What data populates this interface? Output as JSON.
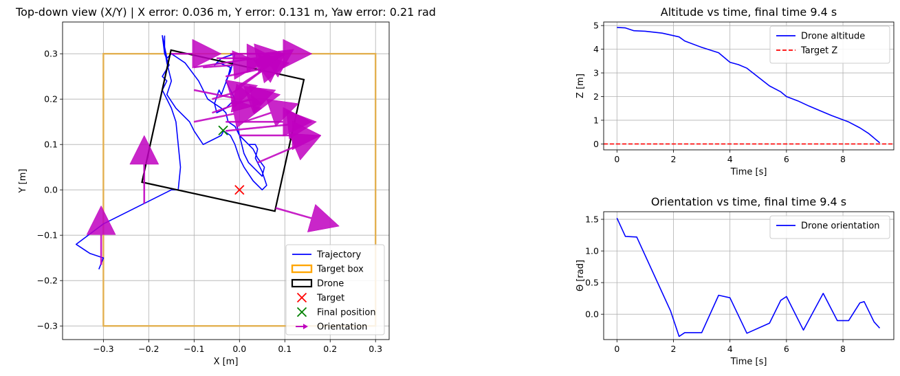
{
  "chart_data": [
    {
      "type": "scatter",
      "title": "Top-down view (X/Y) | X error: 0.036 m, Y error: 0.131 m, Yaw error: 0.21 rad",
      "xlabel": "X [m]",
      "ylabel": "Y [m]",
      "xlim": [
        -0.39,
        0.33
      ],
      "ylim": [
        -0.33,
        0.37
      ],
      "xticks": [
        -0.3,
        -0.2,
        -0.1,
        0.0,
        0.1,
        0.2,
        0.3
      ],
      "yticks": [
        -0.3,
        -0.2,
        -0.1,
        0.0,
        0.1,
        0.2,
        0.3
      ],
      "xtick_labels": [
        "−0.3",
        "−0.2",
        "−0.1",
        "0.0",
        "0.1",
        "0.2",
        "0.3"
      ],
      "ytick_labels": [
        "−0.3",
        "−0.2",
        "−0.1",
        "0.0",
        "0.1",
        "0.2",
        "0.3"
      ],
      "grid": true,
      "legend_position": "bottom-right",
      "legend": [
        "Trajectory",
        "Target box",
        "Drone",
        "Target",
        "Final position",
        "Orientation"
      ],
      "colors": {
        "trajectory": "#0000ff",
        "target_box": "#e3b050",
        "target_box_legend": "#ffa500",
        "drone": "#000000",
        "target": "#ff0000",
        "final": "#008000",
        "orientation": "#bf00bf"
      },
      "target_box": [
        [
          -0.3,
          -0.3
        ],
        [
          0.3,
          -0.3
        ],
        [
          0.3,
          0.3
        ],
        [
          -0.3,
          0.3
        ]
      ],
      "drone": [
        [
          -0.215,
          0.017
        ],
        [
          0.078,
          -0.047
        ],
        [
          0.142,
          0.243
        ],
        [
          -0.151,
          0.308
        ]
      ],
      "target": [
        0.0,
        0.0
      ],
      "final_position": [
        -0.036,
        0.131
      ],
      "trajectory": [
        [
          -0.31,
          -0.175
        ],
        [
          -0.3,
          -0.15
        ],
        [
          -0.33,
          -0.14
        ],
        [
          -0.36,
          -0.12
        ],
        [
          -0.3,
          -0.075
        ],
        [
          -0.15,
          0.0
        ],
        [
          -0.135,
          0.0
        ],
        [
          -0.13,
          0.05
        ],
        [
          -0.14,
          0.15
        ],
        [
          -0.15,
          0.18
        ],
        [
          -0.17,
          0.22
        ],
        [
          -0.16,
          0.24
        ],
        [
          -0.17,
          0.25
        ],
        [
          -0.155,
          0.275
        ],
        [
          -0.165,
          0.3
        ],
        [
          -0.17,
          0.34
        ],
        [
          -0.16,
          0.29
        ],
        [
          -0.15,
          0.3
        ],
        [
          -0.12,
          0.28
        ],
        [
          -0.09,
          0.24
        ],
        [
          -0.07,
          0.2
        ],
        [
          -0.055,
          0.19
        ],
        [
          -0.045,
          0.22
        ],
        [
          -0.04,
          0.21
        ],
        [
          -0.025,
          0.25
        ],
        [
          -0.02,
          0.27
        ],
        [
          -0.045,
          0.28
        ],
        [
          -0.055,
          0.275
        ],
        [
          -0.04,
          0.29
        ],
        [
          -0.01,
          0.3
        ],
        [
          -0.02,
          0.26
        ],
        [
          -0.03,
          0.24
        ],
        [
          -0.02,
          0.22
        ],
        [
          -0.01,
          0.2
        ],
        [
          -0.03,
          0.18
        ],
        [
          -0.05,
          0.17
        ],
        [
          -0.055,
          0.19
        ],
        [
          -0.04,
          0.18
        ],
        [
          -0.03,
          0.17
        ],
        [
          -0.025,
          0.15
        ],
        [
          -0.01,
          0.14
        ],
        [
          0.0,
          0.12
        ],
        [
          0.01,
          0.08
        ],
        [
          0.02,
          0.06
        ],
        [
          0.04,
          0.04
        ],
        [
          0.05,
          0.03
        ],
        [
          0.055,
          0.05
        ],
        [
          0.04,
          0.07
        ],
        [
          0.03,
          0.09
        ],
        [
          0.0,
          0.12
        ],
        [
          -0.005,
          0.14
        ],
        [
          0.0,
          0.12
        ],
        [
          0.02,
          0.1
        ],
        [
          0.035,
          0.1
        ],
        [
          0.04,
          0.09
        ],
        [
          0.035,
          0.07
        ],
        [
          0.05,
          0.04
        ],
        [
          0.06,
          0.01
        ],
        [
          0.05,
          0.0
        ],
        [
          0.03,
          0.02
        ],
        [
          0.01,
          0.05
        ],
        [
          0.0,
          0.07
        ],
        [
          -0.01,
          0.1
        ],
        [
          -0.02,
          0.12
        ],
        [
          -0.035,
          0.13
        ],
        [
          -0.04,
          0.12
        ],
        [
          -0.06,
          0.11
        ],
        [
          -0.08,
          0.1
        ],
        [
          -0.1,
          0.13
        ],
        [
          -0.11,
          0.15
        ],
        [
          -0.14,
          0.18
        ],
        [
          -0.16,
          0.21
        ],
        [
          -0.15,
          0.24
        ],
        [
          -0.16,
          0.28
        ],
        [
          -0.165,
          0.31
        ],
        [
          -0.165,
          0.34
        ]
      ],
      "orientation_arrows": [
        [
          -0.305,
          -0.165,
          0.0,
          0.13
        ],
        [
          -0.21,
          -0.03,
          0.0,
          0.15
        ],
        [
          -0.03,
          0.13,
          0.2,
          0.02
        ],
        [
          -0.03,
          0.15,
          0.19,
          0.0
        ],
        [
          -0.1,
          0.15,
          0.15,
          0.03
        ],
        [
          -0.06,
          0.17,
          0.14,
          0.05
        ],
        [
          -0.02,
          0.19,
          0.11,
          0.02
        ],
        [
          -0.06,
          0.2,
          0.1,
          0.03
        ],
        [
          -0.1,
          0.22,
          0.15,
          -0.03
        ],
        [
          -0.02,
          0.21,
          0.12,
          0.09
        ],
        [
          0.0,
          0.23,
          0.12,
          0.08
        ],
        [
          -0.03,
          0.25,
          0.14,
          0.03
        ],
        [
          -0.08,
          0.27,
          0.13,
          0.01
        ],
        [
          -0.15,
          0.3,
          0.11,
          0.0
        ],
        [
          -0.05,
          0.29,
          0.13,
          0.0
        ],
        [
          -0.02,
          0.3,
          0.18,
          0.0
        ],
        [
          -0.1,
          0.27,
          0.2,
          0.03
        ],
        [
          0.01,
          0.15,
          0.12,
          0.04
        ],
        [
          0.0,
          0.12,
          0.18,
          0.0
        ],
        [
          0.04,
          0.06,
          0.14,
          0.06
        ],
        [
          0.08,
          -0.04,
          0.14,
          -0.04
        ]
      ]
    },
    {
      "type": "line",
      "title": "Altitude vs time, final time 9.4 s",
      "xlabel": "Time [s]",
      "ylabel": "Z [m]",
      "xlim": [
        -0.47,
        9.8
      ],
      "ylim": [
        -0.25,
        5.15
      ],
      "xticks": [
        0,
        2,
        4,
        6,
        8
      ],
      "yticks": [
        0,
        1,
        2,
        3,
        4,
        5
      ],
      "xtick_labels": [
        "0",
        "2",
        "4",
        "6",
        "8"
      ],
      "ytick_labels": [
        "0",
        "1",
        "2",
        "3",
        "4",
        "5"
      ],
      "grid": true,
      "legend_position": "top-right",
      "series": [
        {
          "name": "Drone altitude",
          "color": "#0000ff",
          "style": "solid",
          "x": [
            0.0,
            0.3,
            0.6,
            1.0,
            1.6,
            2.2,
            2.4,
            3.0,
            3.6,
            4.0,
            4.3,
            4.6,
            5.4,
            5.8,
            6.0,
            6.4,
            6.8,
            7.2,
            7.6,
            8.0,
            8.2,
            8.6,
            8.9,
            9.3
          ],
          "y": [
            4.92,
            4.9,
            4.78,
            4.76,
            4.68,
            4.52,
            4.35,
            4.08,
            3.85,
            3.45,
            3.35,
            3.2,
            2.45,
            2.2,
            2.0,
            1.82,
            1.6,
            1.4,
            1.2,
            1.02,
            0.93,
            0.68,
            0.45,
            0.05
          ]
        },
        {
          "name": "Target Z",
          "color": "#ff0000",
          "style": "dashed",
          "x": [
            -0.47,
            9.8
          ],
          "y": [
            0.0,
            0.0
          ]
        }
      ]
    },
    {
      "type": "line",
      "title": "Orientation vs time, final time 9.4 s",
      "xlabel": "Time [s]",
      "ylabel": "Θ [rad]",
      "xlim": [
        -0.47,
        9.8
      ],
      "ylim": [
        -0.4,
        1.62
      ],
      "xticks": [
        0,
        2,
        4,
        6,
        8
      ],
      "yticks": [
        0.0,
        0.5,
        1.0,
        1.5
      ],
      "xtick_labels": [
        "0",
        "2",
        "4",
        "6",
        "8"
      ],
      "ytick_labels": [
        "0.0",
        "0.5",
        "1.0",
        "1.5"
      ],
      "grid": true,
      "legend_position": "top-right",
      "series": [
        {
          "name": "Drone orientation",
          "color": "#0000ff",
          "style": "solid",
          "x": [
            0.0,
            0.3,
            0.7,
            1.9,
            2.2,
            2.4,
            3.0,
            3.6,
            4.0,
            4.6,
            5.4,
            5.8,
            6.0,
            6.6,
            7.3,
            7.8,
            8.2,
            8.6,
            8.75,
            9.1,
            9.3
          ],
          "y": [
            1.52,
            1.23,
            1.22,
            0.05,
            -0.35,
            -0.29,
            -0.29,
            0.3,
            0.26,
            -0.3,
            -0.14,
            0.22,
            0.28,
            -0.25,
            0.33,
            -0.1,
            -0.1,
            0.18,
            0.2,
            -0.12,
            -0.22
          ]
        }
      ]
    }
  ]
}
